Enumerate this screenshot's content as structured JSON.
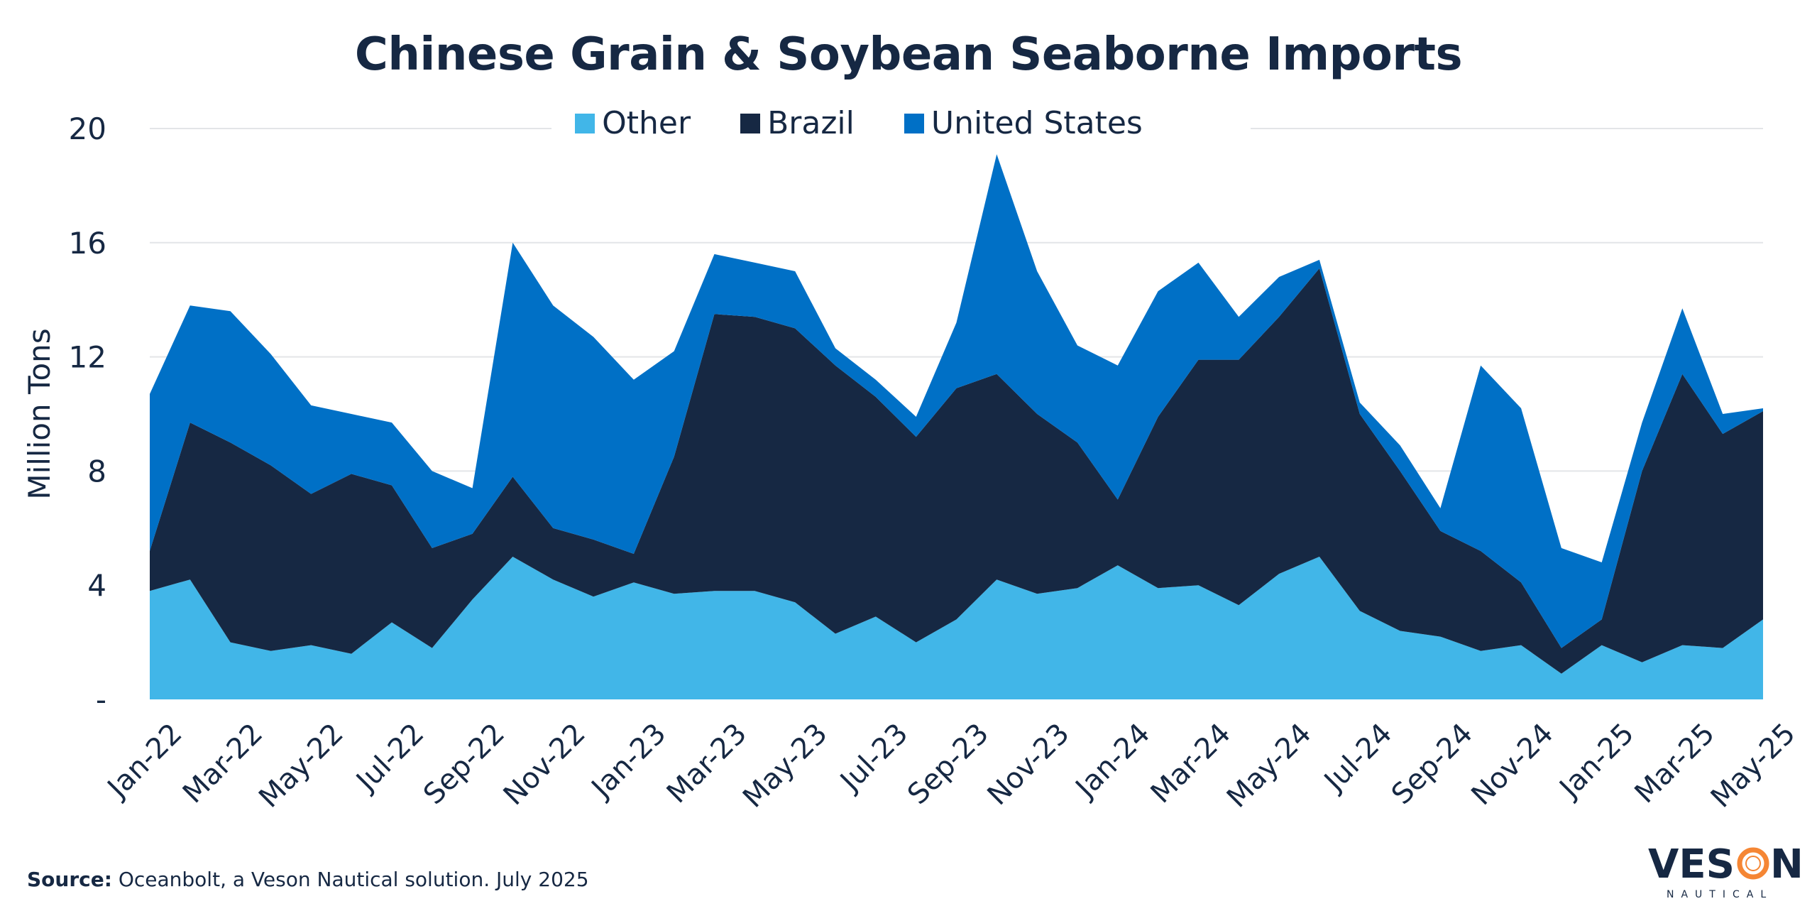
{
  "chart_data": {
    "type": "area",
    "stacked": true,
    "title": "Chinese Grain & Soybean Seaborne Imports",
    "ylabel": "Million Tons",
    "xlabel": "",
    "ylim": [
      0,
      20
    ],
    "yticks": [
      0,
      4,
      8,
      12,
      16,
      20
    ],
    "ytick_labels": [
      "-",
      "4",
      "8",
      "12",
      "16",
      "20"
    ],
    "grid": true,
    "legend": "top-center",
    "categories": [
      "Jan-22",
      "Feb-22",
      "Mar-22",
      "Apr-22",
      "May-22",
      "Jun-22",
      "Jul-22",
      "Aug-22",
      "Sep-22",
      "Oct-22",
      "Nov-22",
      "Dec-22",
      "Jan-23",
      "Feb-23",
      "Mar-23",
      "Apr-23",
      "May-23",
      "Jun-23",
      "Jul-23",
      "Aug-23",
      "Sep-23",
      "Oct-23",
      "Nov-23",
      "Dec-23",
      "Jan-24",
      "Feb-24",
      "Mar-24",
      "Apr-24",
      "May-24",
      "Jun-24",
      "Jul-24",
      "Aug-24",
      "Sep-24",
      "Oct-24",
      "Nov-24",
      "Dec-24",
      "Jan-25",
      "Feb-25",
      "Mar-25",
      "Apr-25",
      "May-25"
    ],
    "xtick_labels": [
      "Jan-22",
      "Mar-22",
      "May-22",
      "Jul-22",
      "Sep-22",
      "Nov-22",
      "Jan-23",
      "Mar-23",
      "May-23",
      "Jul-23",
      "Sep-23",
      "Nov-23",
      "Jan-24",
      "Mar-24",
      "May-24",
      "Jul-24",
      "Sep-24",
      "Nov-24",
      "Jan-25",
      "Mar-25",
      "May-25"
    ],
    "series": [
      {
        "name": "Other",
        "color": "#41b6e8",
        "values": [
          3.8,
          4.2,
          2.0,
          1.7,
          1.9,
          1.6,
          2.7,
          1.8,
          3.5,
          5.0,
          4.2,
          3.6,
          4.1,
          3.7,
          3.8,
          3.8,
          3.4,
          2.3,
          2.9,
          2.0,
          2.8,
          4.2,
          3.7,
          3.9,
          4.7,
          3.9,
          4.0,
          3.3,
          4.4,
          5.0,
          3.1,
          2.4,
          2.2,
          1.7,
          1.9,
          0.9,
          1.9,
          1.3,
          1.9,
          1.8,
          2.8
        ]
      },
      {
        "name": "Brazil",
        "color": "#162843",
        "values": [
          1.4,
          5.5,
          7.0,
          6.5,
          5.3,
          6.3,
          4.8,
          3.5,
          2.3,
          2.8,
          1.8,
          2.0,
          1.0,
          4.8,
          9.7,
          9.6,
          9.6,
          9.4,
          7.7,
          7.2,
          8.1,
          7.2,
          6.3,
          5.1,
          2.3,
          6.0,
          7.9,
          8.6,
          9.0,
          10.1,
          6.9,
          5.6,
          3.7,
          3.5,
          2.2,
          0.9,
          0.9,
          6.7,
          9.5,
          7.5,
          7.3
        ]
      },
      {
        "name": "United States",
        "color": "#0070c6",
        "values": [
          5.5,
          4.1,
          4.6,
          3.9,
          3.1,
          2.1,
          2.2,
          2.7,
          1.6,
          8.2,
          7.8,
          7.1,
          6.1,
          3.7,
          2.1,
          1.9,
          2.0,
          0.6,
          0.6,
          0.7,
          2.3,
          7.7,
          5.0,
          3.4,
          4.7,
          4.4,
          3.4,
          1.5,
          1.4,
          0.3,
          0.4,
          0.9,
          0.8,
          6.5,
          6.1,
          3.5,
          2.0,
          1.7,
          2.3,
          0.7,
          0.1
        ]
      }
    ]
  },
  "source": {
    "label": "Source:",
    "text": " Oceanbolt, a Veson Nautical solution. July 2025"
  },
  "logo": {
    "text": "VESON",
    "subtext": "NAUTICAL",
    "accent": "#f58634"
  }
}
